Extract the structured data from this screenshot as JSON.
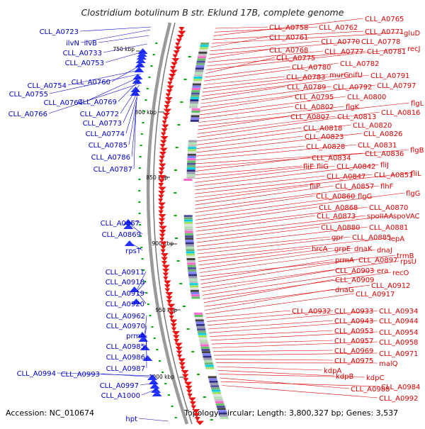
{
  "title": "Clostridium botulinum B str. Eklund 17B, complete genome",
  "accession_text": "Accession: NC_010674",
  "summary_text": "Topology: circular; Length: 3,800,327 bp; Genes: 3,537",
  "colors": {
    "forward_gene": "#2233ff",
    "reverse_gene": "#ee1111",
    "label_left": "#0000cc",
    "label_right": "#dd0000",
    "backbone": "#8c8c8c",
    "tick_mark": "#00aa00"
  },
  "ticks": [
    {
      "label": "750 kbp",
      "x": 752
    },
    {
      "label": "800 kbp",
      "x": 801
    },
    {
      "label": "850 kbp",
      "x": 850
    },
    {
      "label": "900 kbp",
      "x": 900
    },
    {
      "label": "950 kbp",
      "x": 950
    },
    {
      "label": "1000 kbp",
      "x": 1000
    }
  ],
  "left_labels": [
    "CLL_A0723",
    "ilvN",
    "ilvB",
    "CLL_A0733",
    "CLL_A0753",
    "CLL_A0760",
    "CLL_A0754",
    "CLL_A0755",
    "CLL_A0764",
    "CLL_A0769",
    "CLL_A0766",
    "CLL_A0772",
    "CLL_A0773",
    "CLL_A0774",
    "CLL_A0785",
    "CLL_A0786",
    "CLL_A0787",
    "CLL_A0867",
    "CLL_A0869",
    "rpsT",
    "CLL_A0911",
    "CLL_A0918",
    "CLL_A0919",
    "CLL_A0920",
    "CLL_A0962",
    "CLL_A0970",
    "prmA",
    "CLL_A0985",
    "CLL_A0986",
    "CLL_A0987",
    "CLL_A0994",
    "CLL_A0993",
    "CLL_A0997",
    "CLL_A1000",
    "hpt"
  ],
  "right_labels": [
    "CLL_A0758",
    "CLL_A0762",
    "CLL_A0765",
    "CLL_A0771",
    "gluD",
    "CLL_A0761",
    "CLL_A0770",
    "CLL_A0778",
    "CLL_A0768",
    "CLL_A0777",
    "CLL_A0781",
    "recJ",
    "CLL_A0775",
    "CLL_A0780",
    "CLL_A0782",
    "CLL_A0783",
    "murG",
    "nifU",
    "CLL_A0791",
    "CLL_A0789",
    "CLL_A0792",
    "CLL_A0797",
    "CLL_A0795",
    "CLL_A0800",
    "CLL_A0802",
    "flgK",
    "flgL",
    "CLL_A0807",
    "CLL_A0813",
    "CLL_A0816",
    "CLL_A0818",
    "CLL_A0820",
    "CLL_A0823",
    "CLL_A0826",
    "CLL_A0828",
    "CLL_A0831",
    "CLL_A0836",
    "flgB",
    "CLL_A0834",
    "fliE",
    "fliG",
    "CLL_A0842",
    "fliJ",
    "CLL_A0847",
    "CLL_A0851",
    "fliL",
    "fliP",
    "CLL_A0857",
    "flhF",
    "CLL_A0860",
    "flgG",
    "flgG",
    "CLL_A0868",
    "CLL_A0870",
    "CLL_A0873",
    "spoIIAA",
    "spoVAC",
    "CLL_A0880",
    "CLL_A0881",
    "gpr",
    "CLL_A0885",
    "lepA",
    "hrcA",
    "grpE",
    "dnaK",
    "dnaJ",
    "trmB",
    "prmA",
    "CLL_A0897",
    "rpsU",
    "CLL_A0903",
    "era",
    "recO",
    "CLL_A0909",
    "CLL_A0912",
    "dnaG",
    "CLL_A0917",
    "CLL_A0932",
    "CLL_A0933",
    "CLL_A0934",
    "CLL_A0943",
    "CLL_A0944",
    "CLL_A0953",
    "CLL_A0954",
    "CLL_A0957",
    "CLL_A0958",
    "CLL_A0969",
    "CLL_A0971",
    "CLL_A0975",
    "malQ",
    "kdpA",
    "kdpB",
    "kdpC",
    "CLL_A0988",
    "CLL_A0984",
    "CLL_A0992"
  ]
}
